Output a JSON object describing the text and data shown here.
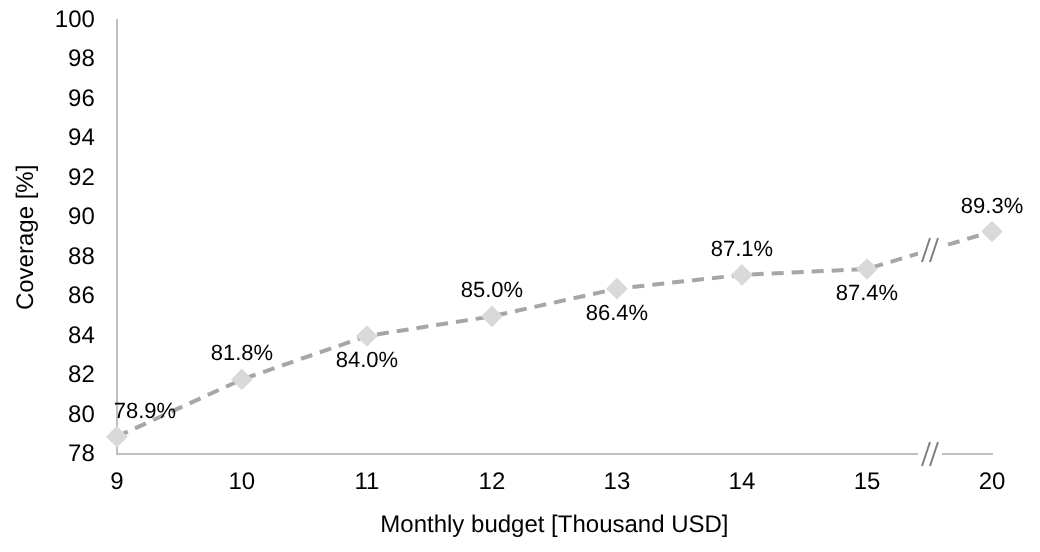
{
  "chart_data": {
    "type": "line",
    "xlabel": "Monthly budget [Thousand USD]",
    "ylabel": "Coverage [%]",
    "categories": [
      "9",
      "10",
      "11",
      "12",
      "13",
      "14",
      "15",
      "20"
    ],
    "series": [
      {
        "color": "#a6a6a6",
        "values": [
          78.9,
          81.8,
          84.0,
          85.0,
          86.4,
          87.1,
          87.4,
          89.3
        ],
        "value_labels": [
          "78.9%",
          "81.8%",
          "84.0%",
          "85.0%",
          "86.4%",
          "87.1%",
          "87.4%",
          "89.3%"
        ]
      }
    ],
    "ylim": [
      78,
      100
    ],
    "yticks": [
      78,
      80,
      82,
      84,
      86,
      88,
      90,
      92,
      94,
      96,
      98,
      100
    ],
    "grid": false,
    "legend": false,
    "marker": "diamond",
    "line_style": "dashed"
  }
}
